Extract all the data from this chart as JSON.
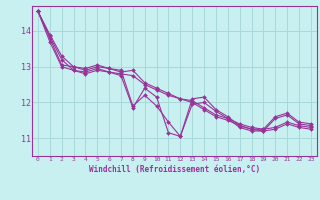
{
  "title": "",
  "xlabel": "Windchill (Refroidissement éolien,°C)",
  "ylabel": "",
  "background_color": "#c8f0f0",
  "grid_color": "#a8d8d8",
  "line_color": "#993399",
  "xlim": [
    -0.5,
    23.5
  ],
  "ylim": [
    10.5,
    14.7
  ],
  "yticks": [
    11,
    12,
    13,
    14
  ],
  "xticks": [
    0,
    1,
    2,
    3,
    4,
    5,
    6,
    7,
    8,
    9,
    10,
    11,
    12,
    13,
    14,
    15,
    16,
    17,
    18,
    19,
    20,
    21,
    22,
    23
  ],
  "series": [
    [
      14.55,
      13.85,
      13.2,
      12.9,
      12.85,
      12.95,
      12.85,
      12.75,
      11.85,
      12.4,
      12.15,
      11.15,
      11.05,
      11.95,
      12.0,
      11.75,
      11.55,
      11.3,
      11.2,
      11.2,
      11.55,
      11.65,
      11.4,
      11.35
    ],
    [
      14.55,
      13.8,
      13.05,
      13.0,
      12.9,
      13.0,
      12.95,
      12.85,
      12.9,
      12.55,
      12.4,
      12.25,
      12.1,
      12.05,
      11.85,
      11.65,
      11.55,
      11.4,
      11.3,
      11.25,
      11.3,
      11.45,
      11.35,
      11.3
    ],
    [
      14.55,
      13.7,
      13.0,
      12.9,
      12.8,
      12.9,
      12.85,
      12.8,
      12.75,
      12.5,
      12.35,
      12.2,
      12.1,
      12.0,
      11.8,
      11.6,
      11.5,
      11.35,
      11.25,
      11.2,
      11.25,
      11.4,
      11.3,
      11.25
    ],
    [
      14.55,
      13.9,
      13.3,
      13.0,
      12.95,
      13.05,
      12.95,
      12.9,
      11.9,
      12.2,
      11.9,
      11.45,
      11.05,
      12.1,
      12.15,
      11.8,
      11.6,
      11.35,
      11.25,
      11.25,
      11.6,
      11.7,
      11.45,
      11.4
    ]
  ]
}
